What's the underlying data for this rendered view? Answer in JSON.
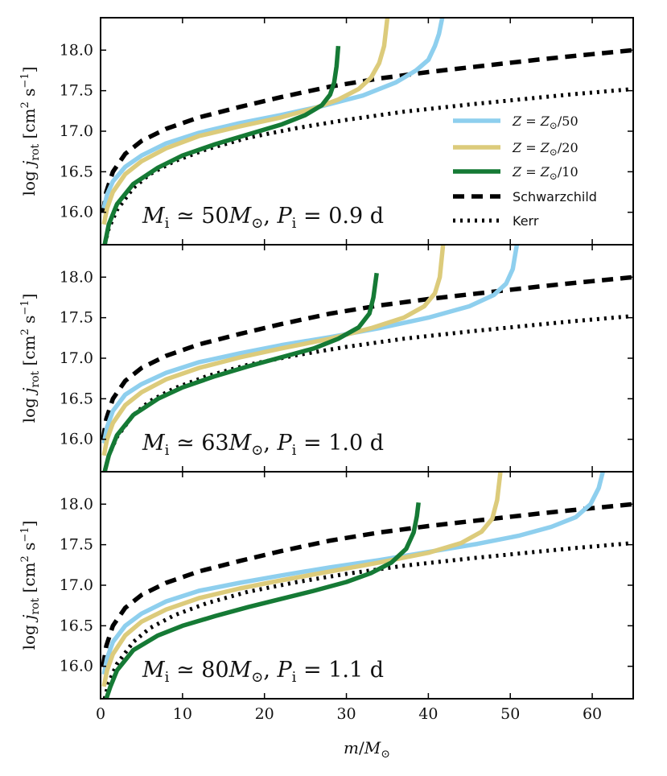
{
  "chart_data": {
    "type": "line",
    "xlabel": "m/M_⊙",
    "ylabel": "log j_rot [cm² s⁻¹]",
    "xlim": [
      0,
      65
    ],
    "ylim": [
      15.6,
      18.4
    ],
    "x_ticks": [
      "0",
      "10",
      "20",
      "30",
      "40",
      "50",
      "60"
    ],
    "y_ticks": [
      "16.0",
      "16.5",
      "17.0",
      "17.5",
      "18.0"
    ],
    "colors": {
      "z50": "#8ecfee",
      "z20": "#dccb7b",
      "z10": "#157a35",
      "schwarz": "#000000",
      "kerr": "#000000"
    },
    "legend": [
      {
        "key": "z50",
        "label": "Z = Z⊙/50",
        "style": "solid"
      },
      {
        "key": "z20",
        "label": "Z = Z⊙/20",
        "style": "solid"
      },
      {
        "key": "z10",
        "label": "Z = Z⊙/10",
        "style": "solid"
      },
      {
        "key": "schwarz",
        "label": "Schwarzchild",
        "style": "dashed"
      },
      {
        "key": "kerr",
        "label": "Kerr",
        "style": "dotted"
      }
    ],
    "panels": [
      {
        "annotation": "M_i ≃ 50M_⊙,  P_i = 0.9 d",
        "mi": "50",
        "pi": "0.9",
        "series": {
          "schwarz": {
            "x": [
              0.3,
              0.7,
              1.5,
              3,
              5,
              8,
              12,
              17,
              22,
              28,
              34,
              40,
              47,
              54,
              60,
              65
            ],
            "y": [
              16.0,
              16.25,
              16.5,
              16.72,
              16.88,
              17.03,
              17.17,
              17.3,
              17.42,
              17.55,
              17.65,
              17.73,
              17.81,
              17.89,
              17.95,
              18.0
            ]
          },
          "kerr": {
            "x": [
              0.5,
              1,
              2,
              4,
              6,
              9,
              13,
              18,
              24,
              30,
              37,
              45,
              52,
              58,
              65
            ],
            "y": [
              15.6,
              15.8,
              16.03,
              16.3,
              16.47,
              16.63,
              16.78,
              16.92,
              17.04,
              17.14,
              17.24,
              17.33,
              17.4,
              17.46,
              17.52
            ]
          },
          "z50": {
            "x": [
              0.4,
              0.8,
              1.5,
              3,
              5,
              8,
              12,
              17,
              22,
              27,
              32,
              36,
              38.5,
              40,
              40.8,
              41.3,
              41.7
            ],
            "y": [
              16.05,
              16.22,
              16.38,
              16.56,
              16.7,
              16.85,
              16.98,
              17.1,
              17.2,
              17.31,
              17.44,
              17.6,
              17.75,
              17.88,
              18.05,
              18.2,
              18.4
            ]
          },
          "z20": {
            "x": [
              0.4,
              0.8,
              1.5,
              3,
              5,
              8,
              12,
              17,
              22,
              26,
              29,
              31.5,
              33,
              34,
              34.6,
              35
            ],
            "y": [
              15.85,
              16.05,
              16.25,
              16.47,
              16.63,
              16.79,
              16.94,
              17.06,
              17.17,
              17.28,
              17.39,
              17.52,
              17.66,
              17.84,
              18.05,
              18.4
            ]
          },
          "z10": {
            "x": [
              0.5,
              1,
              2,
              4,
              7,
              10,
              14,
              18,
              22,
              25,
              27,
              28,
              28.5,
              28.8,
              29
            ],
            "y": [
              15.6,
              15.85,
              16.1,
              16.35,
              16.55,
              16.7,
              16.84,
              16.96,
              17.08,
              17.2,
              17.32,
              17.45,
              17.6,
              17.8,
              18.05
            ]
          }
        }
      },
      {
        "annotation": "M_i ≃ 63M_⊙,  P_i = 1.0 d",
        "mi": "63",
        "pi": "1.0",
        "series": {
          "schwarz": {
            "x": [
              0.3,
              0.7,
              1.5,
              3,
              5,
              8,
              12,
              17,
              22,
              28,
              34,
              40,
              47,
              54,
              60,
              65
            ],
            "y": [
              16.0,
              16.25,
              16.5,
              16.72,
              16.88,
              17.03,
              17.17,
              17.3,
              17.42,
              17.55,
              17.65,
              17.73,
              17.81,
              17.89,
              17.95,
              18.0
            ]
          },
          "kerr": {
            "x": [
              0.5,
              1,
              2,
              4,
              6,
              9,
              13,
              18,
              24,
              30,
              37,
              45,
              52,
              58,
              65
            ],
            "y": [
              15.6,
              15.8,
              16.03,
              16.3,
              16.47,
              16.63,
              16.78,
              16.92,
              17.04,
              17.14,
              17.24,
              17.33,
              17.4,
              17.46,
              17.52
            ]
          },
          "z50": {
            "x": [
              0.4,
              0.8,
              1.5,
              3,
              5,
              8,
              12,
              17,
              22,
              28,
              34,
              40,
              45,
              48,
              49.5,
              50.3,
              50.8
            ],
            "y": [
              15.95,
              16.15,
              16.35,
              16.55,
              16.68,
              16.82,
              16.95,
              17.06,
              17.16,
              17.26,
              17.37,
              17.5,
              17.64,
              17.78,
              17.92,
              18.1,
              18.4
            ]
          },
          "z20": {
            "x": [
              0.4,
              0.8,
              1.5,
              3,
              5,
              8,
              12,
              17,
              22,
              28,
              33,
              37,
              39.5,
              40.8,
              41.4,
              41.8
            ],
            "y": [
              15.8,
              16.0,
              16.2,
              16.42,
              16.58,
              16.74,
              16.88,
              17.01,
              17.12,
              17.24,
              17.37,
              17.5,
              17.64,
              17.8,
              18.0,
              18.4
            ]
          },
          "z10": {
            "x": [
              0.5,
              1,
              2,
              4,
              7,
              10,
              14,
              18,
              22,
              26,
              29,
              31.5,
              32.8,
              33.3,
              33.7
            ],
            "y": [
              15.6,
              15.8,
              16.05,
              16.3,
              16.5,
              16.64,
              16.78,
              16.9,
              17.01,
              17.12,
              17.24,
              17.38,
              17.55,
              17.75,
              18.05
            ]
          }
        }
      },
      {
        "annotation": "M_i ≃ 80M_⊙,  P_i = 1.1 d",
        "mi": "80",
        "pi": "1.1",
        "series": {
          "schwarz": {
            "x": [
              0.3,
              0.7,
              1.5,
              3,
              5,
              8,
              12,
              17,
              22,
              28,
              34,
              40,
              47,
              54,
              60,
              65
            ],
            "y": [
              16.0,
              16.25,
              16.5,
              16.72,
              16.88,
              17.03,
              17.17,
              17.3,
              17.42,
              17.55,
              17.65,
              17.73,
              17.81,
              17.89,
              17.95,
              18.0
            ]
          },
          "kerr": {
            "x": [
              0.5,
              1,
              2,
              4,
              6,
              9,
              13,
              18,
              24,
              30,
              37,
              45,
              52,
              58,
              65
            ],
            "y": [
              15.6,
              15.8,
              16.03,
              16.3,
              16.47,
              16.63,
              16.78,
              16.92,
              17.04,
              17.14,
              17.24,
              17.33,
              17.4,
              17.46,
              17.52
            ]
          },
          "z50": {
            "x": [
              0.4,
              0.8,
              1.5,
              3,
              5,
              8,
              12,
              17,
              22,
              28,
              34,
              40,
              46,
              51,
              55,
              58,
              59.8,
              60.8,
              61.3
            ],
            "y": [
              15.9,
              16.1,
              16.3,
              16.5,
              16.65,
              16.8,
              16.93,
              17.03,
              17.12,
              17.22,
              17.31,
              17.41,
              17.51,
              17.61,
              17.72,
              17.84,
              18.0,
              18.2,
              18.4
            ]
          },
          "z20": {
            "x": [
              0.4,
              0.8,
              1.5,
              3,
              5,
              8,
              12,
              17,
              22,
              28,
              34,
              40,
              44,
              46.5,
              47.8,
              48.4,
              48.8
            ],
            "y": [
              15.75,
              15.95,
              16.15,
              16.38,
              16.55,
              16.7,
              16.84,
              16.96,
              17.06,
              17.17,
              17.28,
              17.4,
              17.52,
              17.66,
              17.82,
              18.05,
              18.4
            ]
          },
          "z10": {
            "x": [
              0.7,
              1.2,
              2,
              4,
              7,
              10,
              14,
              18,
              22,
              26,
              30,
              33,
              35.5,
              37.3,
              38.2,
              38.6,
              38.8
            ],
            "y": [
              15.6,
              15.75,
              15.95,
              16.2,
              16.38,
              16.5,
              16.62,
              16.73,
              16.83,
              16.93,
              17.04,
              17.15,
              17.28,
              17.45,
              17.65,
              17.85,
              18.02
            ]
          }
        }
      }
    ]
  }
}
